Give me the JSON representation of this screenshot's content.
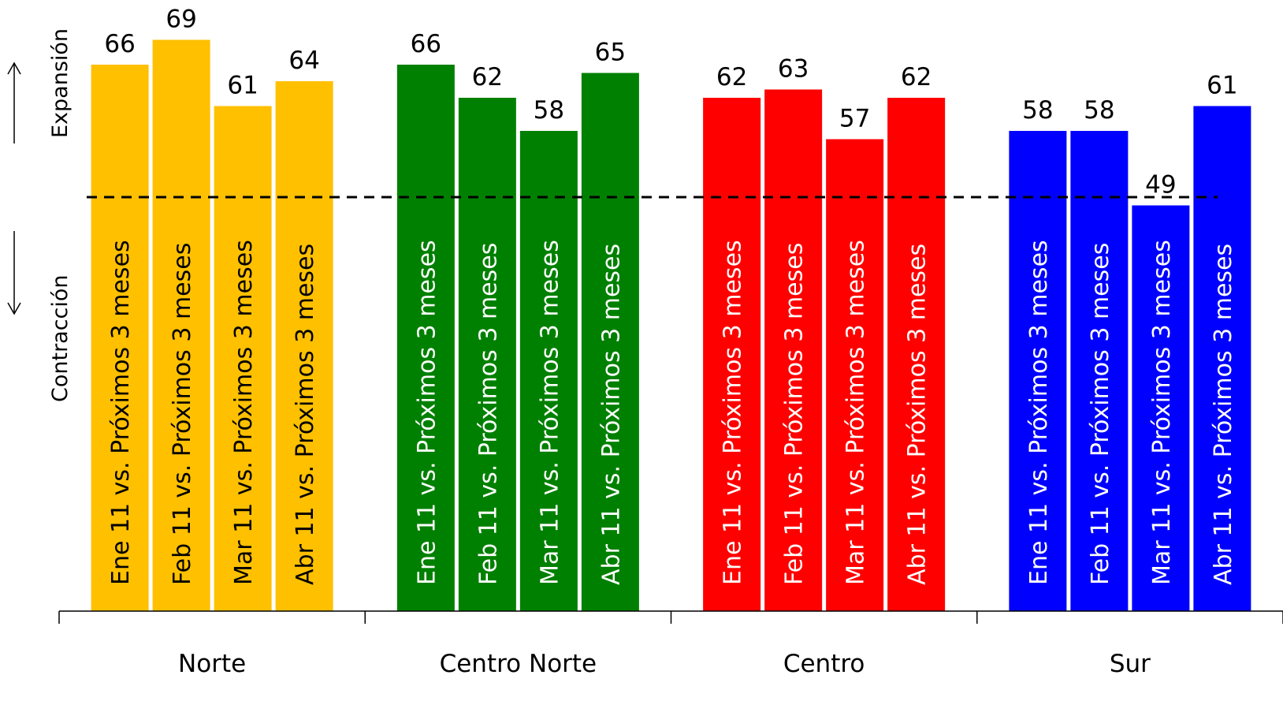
{
  "chart_data": {
    "type": "bar",
    "reference_line": 50,
    "ylim": [
      0,
      75
    ],
    "side_labels": {
      "top": "Expansión",
      "bottom": "Contracción"
    },
    "groups": [
      {
        "name": "Norte",
        "color": "#FFC000",
        "text_color": "#000000",
        "bars": [
          {
            "label": "Ene 11 vs. Próximos 3 meses",
            "value": 66
          },
          {
            "label": "Feb 11 vs. Próximos 3 meses",
            "value": 69
          },
          {
            "label": "Mar 11 vs. Próximos 3 meses",
            "value": 61
          },
          {
            "label": "Abr 11 vs. Próximos 3 meses",
            "value": 64
          }
        ]
      },
      {
        "name": "Centro Norte",
        "color": "#008000",
        "text_color": "#ffffff",
        "bars": [
          {
            "label": "Ene 11 vs. Próximos 3 meses",
            "value": 66
          },
          {
            "label": "Feb 11 vs. Próximos 3 meses",
            "value": 62
          },
          {
            "label": "Mar 11 vs. Próximos 3 meses",
            "value": 58
          },
          {
            "label": "Abr 11 vs. Próximos 3 meses",
            "value": 65
          }
        ]
      },
      {
        "name": "Centro",
        "color": "#FF0000",
        "text_color": "#ffffff",
        "bars": [
          {
            "label": "Ene 11 vs. Próximos 3 meses",
            "value": 62
          },
          {
            "label": "Feb 11 vs. Próximos 3 meses",
            "value": 63
          },
          {
            "label": "Mar 11 vs. Próximos 3 meses",
            "value": 57
          },
          {
            "label": "Abr 11 vs. Próximos 3 meses",
            "value": 62
          }
        ]
      },
      {
        "name": "Sur",
        "color": "#0000FF",
        "text_color": "#ffffff",
        "bars": [
          {
            "label": "Ene 11 vs. Próximos 3 meses",
            "value": 58
          },
          {
            "label": "Feb 11 vs. Próximos 3 meses",
            "value": 58
          },
          {
            "label": "Mar 11 vs. Próximos 3 meses",
            "value": 49
          },
          {
            "label": "Abr 11 vs. Próximos 3 meses",
            "value": 61
          }
        ]
      }
    ]
  }
}
